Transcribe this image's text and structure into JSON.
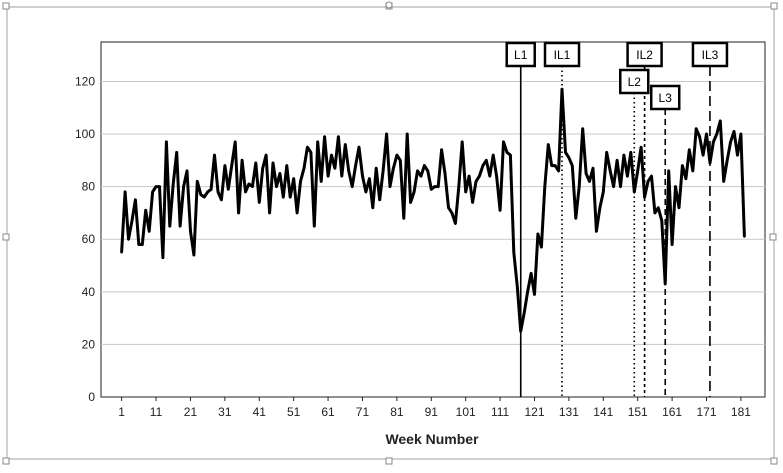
{
  "chart_data": {
    "type": "line",
    "title": "",
    "xlabel": "Week Number",
    "ylabel": "",
    "xlim": [
      -5,
      188
    ],
    "ylim": [
      0,
      135
    ],
    "grid": "horizontal",
    "y_ticks": [
      0,
      20,
      40,
      60,
      80,
      100,
      120
    ],
    "x_ticks": [
      1,
      11,
      21,
      31,
      41,
      51,
      61,
      71,
      81,
      91,
      101,
      111,
      121,
      131,
      141,
      151,
      161,
      171,
      181
    ],
    "series": [
      {
        "values": [
          [
            1,
            55
          ],
          [
            2,
            78
          ],
          [
            3,
            60
          ],
          [
            4,
            67
          ],
          [
            5,
            75
          ],
          [
            6,
            58
          ],
          [
            7,
            58
          ],
          [
            8,
            71
          ],
          [
            9,
            63
          ],
          [
            10,
            78
          ],
          [
            11,
            80
          ],
          [
            12,
            80
          ],
          [
            13,
            53
          ],
          [
            14,
            97
          ],
          [
            15,
            65
          ],
          [
            16,
            81
          ],
          [
            17,
            93
          ],
          [
            18,
            65
          ],
          [
            19,
            80
          ],
          [
            20,
            86
          ],
          [
            21,
            63
          ],
          [
            22,
            54
          ],
          [
            23,
            82
          ],
          [
            24,
            77
          ],
          [
            25,
            76
          ],
          [
            26,
            78
          ],
          [
            27,
            79
          ],
          [
            28,
            92
          ],
          [
            29,
            78
          ],
          [
            30,
            75
          ],
          [
            31,
            88
          ],
          [
            32,
            79
          ],
          [
            33,
            88
          ],
          [
            34,
            97
          ],
          [
            35,
            70
          ],
          [
            36,
            90
          ],
          [
            37,
            78
          ],
          [
            38,
            81
          ],
          [
            39,
            80
          ],
          [
            40,
            89
          ],
          [
            41,
            74
          ],
          [
            42,
            87
          ],
          [
            43,
            92
          ],
          [
            44,
            70
          ],
          [
            45,
            89
          ],
          [
            46,
            80
          ],
          [
            47,
            85
          ],
          [
            48,
            76
          ],
          [
            49,
            88
          ],
          [
            50,
            76
          ],
          [
            51,
            83
          ],
          [
            52,
            70
          ],
          [
            53,
            82
          ],
          [
            54,
            87
          ],
          [
            55,
            95
          ],
          [
            56,
            93
          ],
          [
            57,
            65
          ],
          [
            58,
            97
          ],
          [
            59,
            82
          ],
          [
            60,
            99
          ],
          [
            61,
            84
          ],
          [
            62,
            92
          ],
          [
            63,
            87
          ],
          [
            64,
            99
          ],
          [
            65,
            84
          ],
          [
            66,
            96
          ],
          [
            67,
            86
          ],
          [
            68,
            80
          ],
          [
            69,
            88
          ],
          [
            70,
            95
          ],
          [
            71,
            84
          ],
          [
            72,
            78
          ],
          [
            73,
            83
          ],
          [
            74,
            72
          ],
          [
            75,
            87
          ],
          [
            76,
            75
          ],
          [
            77,
            86
          ],
          [
            78,
            100
          ],
          [
            79,
            80
          ],
          [
            80,
            87
          ],
          [
            81,
            92
          ],
          [
            82,
            90
          ],
          [
            83,
            68
          ],
          [
            84,
            100
          ],
          [
            85,
            74
          ],
          [
            86,
            78
          ],
          [
            87,
            86
          ],
          [
            88,
            84
          ],
          [
            89,
            88
          ],
          [
            90,
            86
          ],
          [
            91,
            79
          ],
          [
            92,
            80
          ],
          [
            93,
            80
          ],
          [
            94,
            94
          ],
          [
            95,
            85
          ],
          [
            96,
            72
          ],
          [
            97,
            70
          ],
          [
            98,
            66
          ],
          [
            99,
            80
          ],
          [
            100,
            97
          ],
          [
            101,
            78
          ],
          [
            102,
            84
          ],
          [
            103,
            74
          ],
          [
            104,
            82
          ],
          [
            105,
            84
          ],
          [
            106,
            88
          ],
          [
            107,
            90
          ],
          [
            108,
            84
          ],
          [
            109,
            92
          ],
          [
            110,
            84
          ],
          [
            111,
            71
          ],
          [
            112,
            97
          ],
          [
            113,
            93
          ],
          [
            114,
            92
          ],
          [
            115,
            55
          ],
          [
            116,
            42
          ],
          [
            117,
            25
          ],
          [
            118,
            32
          ],
          [
            119,
            40
          ],
          [
            120,
            47
          ],
          [
            121,
            39
          ],
          [
            122,
            62
          ],
          [
            123,
            57
          ],
          [
            124,
            80
          ],
          [
            125,
            96
          ],
          [
            126,
            88
          ],
          [
            127,
            88
          ],
          [
            128,
            86
          ],
          [
            129,
            117
          ],
          [
            130,
            93
          ],
          [
            131,
            91
          ],
          [
            132,
            88
          ],
          [
            133,
            68
          ],
          [
            134,
            80
          ],
          [
            135,
            102
          ],
          [
            136,
            85
          ],
          [
            137,
            82
          ],
          [
            138,
            87
          ],
          [
            139,
            63
          ],
          [
            140,
            72
          ],
          [
            141,
            78
          ],
          [
            142,
            93
          ],
          [
            143,
            86
          ],
          [
            144,
            80
          ],
          [
            145,
            90
          ],
          [
            146,
            80
          ],
          [
            147,
            92
          ],
          [
            148,
            84
          ],
          [
            149,
            93
          ],
          [
            150,
            78
          ],
          [
            151,
            86
          ],
          [
            152,
            95
          ],
          [
            153,
            76
          ],
          [
            154,
            82
          ],
          [
            155,
            84
          ],
          [
            156,
            70
          ],
          [
            157,
            72
          ],
          [
            158,
            67
          ],
          [
            159,
            43
          ],
          [
            160,
            86
          ],
          [
            161,
            58
          ],
          [
            162,
            80
          ],
          [
            163,
            72
          ],
          [
            164,
            88
          ],
          [
            165,
            83
          ],
          [
            166,
            94
          ],
          [
            167,
            86
          ],
          [
            168,
            102
          ],
          [
            169,
            99
          ],
          [
            170,
            92
          ],
          [
            171,
            100
          ],
          [
            172,
            89
          ],
          [
            173,
            97
          ],
          [
            174,
            100
          ],
          [
            175,
            105
          ],
          [
            176,
            82
          ],
          [
            177,
            90
          ],
          [
            178,
            97
          ],
          [
            179,
            101
          ],
          [
            180,
            92
          ],
          [
            181,
            100
          ],
          [
            182,
            61
          ]
        ]
      }
    ],
    "annotations": [
      {
        "label": "L1",
        "x": 117,
        "style": "solid"
      },
      {
        "label": "IL1",
        "x": 129,
        "style": "dotted"
      },
      {
        "label": "L2",
        "x": 150,
        "style": "dotted"
      },
      {
        "label": "IL2",
        "x": 153,
        "style": "dotted-dash"
      },
      {
        "label": "L3",
        "x": 159,
        "style": "dashed"
      },
      {
        "label": "IL3",
        "x": 172,
        "style": "long-dash"
      }
    ]
  }
}
